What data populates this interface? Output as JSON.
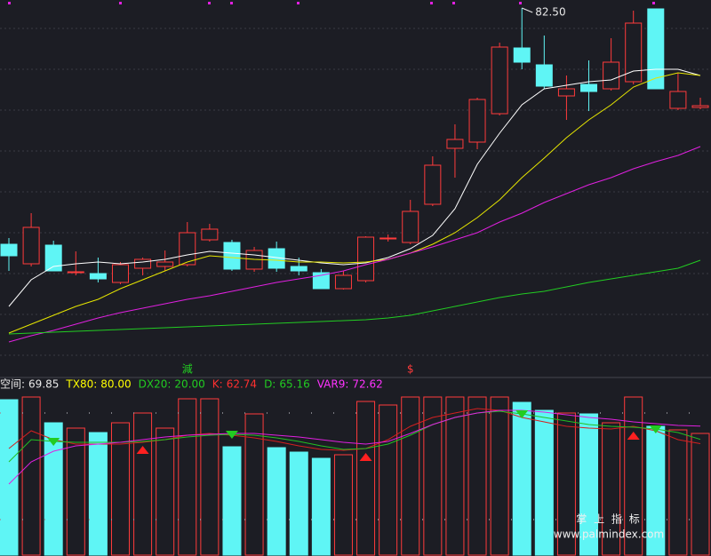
{
  "chart_data": [
    {
      "type": "candlestick",
      "open": [
        55.9,
        53.7,
        55.8,
        52.7,
        52.6,
        51.6,
        53.2,
        53.4,
        53.6,
        56.4,
        56.1,
        53.1,
        55.4,
        53.4,
        52.7,
        50.9,
        51.8,
        56.5,
        56.1,
        60.4,
        66.7,
        67.4,
        70.6,
        78.0,
        76.1,
        72.6,
        73.9,
        73.4,
        74.2,
        82.4,
        71.2,
        71.3
      ],
      "high": [
        56.6,
        59.4,
        56.3,
        55.1,
        54.4,
        53.9,
        54.4,
        55.2,
        58.4,
        58.2,
        56.4,
        55.6,
        56.2,
        54.4,
        53.1,
        52.9,
        56.8,
        57.0,
        60.9,
        65.8,
        69.4,
        72.4,
        78.6,
        82.5,
        79.4,
        74.9,
        76.6,
        79.1,
        82.2,
        82.4,
        75.2,
        72.4
      ],
      "low": [
        52.9,
        53.4,
        52.9,
        52.4,
        51.6,
        51.4,
        52.4,
        52.9,
        53.4,
        56.2,
        52.9,
        52.8,
        52.8,
        52.4,
        50.9,
        50.8,
        51.6,
        56.2,
        55.9,
        60.2,
        63.4,
        66.6,
        70.4,
        75.6,
        73.4,
        69.9,
        70.9,
        73.2,
        73.9,
        73.4,
        71.0,
        71.1
      ],
      "close": [
        54.6,
        57.8,
        52.9,
        52.8,
        52.0,
        53.6,
        54.2,
        53.9,
        57.2,
        57.6,
        53.1,
        55.2,
        53.2,
        52.9,
        50.9,
        52.4,
        56.7,
        56.6,
        59.6,
        64.8,
        67.7,
        72.2,
        78.1,
        76.4,
        73.7,
        73.4,
        73.1,
        76.4,
        80.8,
        73.4,
        73.1,
        71.5
      ],
      "up_color": "#ff3b3b",
      "down_color": "#5ff5f5",
      "ylim": [
        40.9,
        83.4
      ],
      "series": [
        {
          "color": "#ffffff",
          "values": [
            48.9,
            51.9,
            53.4,
            53.7,
            53.9,
            53.7,
            53.9,
            54.2,
            54.7,
            55.1,
            54.9,
            54.7,
            54.4,
            54.1,
            53.8,
            53.6,
            53.8,
            54.4,
            55.4,
            56.9,
            59.9,
            64.9,
            68.4,
            71.6,
            73.4,
            73.8,
            74.2,
            74.4,
            75.4,
            75.6,
            75.6,
            74.9
          ]
        },
        {
          "color": "#e6e600",
          "values": [
            45.9,
            46.9,
            47.9,
            48.9,
            49.7,
            50.9,
            51.9,
            52.9,
            53.9,
            54.6,
            54.4,
            54.2,
            54.1,
            53.9,
            53.9,
            53.8,
            53.9,
            54.2,
            54.9,
            55.9,
            57.2,
            58.9,
            60.9,
            63.4,
            65.6,
            67.9,
            69.9,
            71.6,
            73.6,
            74.6,
            75.2,
            74.9
          ]
        },
        {
          "color": "#e020e0",
          "values": [
            44.9,
            45.6,
            46.2,
            46.9,
            47.6,
            48.2,
            48.7,
            49.2,
            49.7,
            50.1,
            50.6,
            51.1,
            51.6,
            52.0,
            52.4,
            52.9,
            53.6,
            54.2,
            54.9,
            55.6,
            56.4,
            57.2,
            58.4,
            59.4,
            60.6,
            61.6,
            62.6,
            63.4,
            64.4,
            65.2,
            65.9,
            66.9
          ]
        },
        {
          "color": "#22cc22",
          "values": [
            45.8,
            45.9,
            46.0,
            46.1,
            46.2,
            46.3,
            46.4,
            46.5,
            46.6,
            46.7,
            46.8,
            46.9,
            47.0,
            47.1,
            47.2,
            47.3,
            47.4,
            47.6,
            47.9,
            48.4,
            48.9,
            49.4,
            49.9,
            50.3,
            50.6,
            51.1,
            51.6,
            52.0,
            52.4,
            52.8,
            53.2,
            54.1
          ]
        }
      ],
      "price_label": {
        "index": 23,
        "value": 82.5,
        "label": "82.50"
      },
      "annotations": [
        {
          "text": "減",
          "index": 8,
          "color": "#22cc22"
        },
        {
          "text": "$",
          "index": 18,
          "color": "#ff3b3b"
        }
      ]
    },
    {
      "type": "indicator",
      "ylim": [
        0,
        100
      ],
      "bars": [
        87.5,
        89,
        74.5,
        71.5,
        69,
        74.5,
        80,
        71.5,
        88,
        88,
        61,
        79.5,
        60.5,
        58,
        54.5,
        56.5,
        86.5,
        84.5,
        89,
        89,
        89,
        89,
        89,
        86,
        81.5,
        80,
        79.5,
        74.5,
        89,
        72.5,
        70.5,
        68.5
      ],
      "readouts": [
        {
          "name": "空间:",
          "value": 69.85,
          "color": "#e8e8e8"
        },
        {
          "name": "TX80:",
          "value": 80,
          "label": "80.00",
          "color": "#ffff00"
        },
        {
          "name": "DX20:",
          "value": 20,
          "label": "20.00",
          "color": "#22cc22"
        },
        {
          "name": "K:",
          "value": 62.74,
          "color": "#ff3030"
        },
        {
          "name": "D:",
          "value": 65.16,
          "color": "#22cc22"
        },
        {
          "name": "VAR9:",
          "value": 72.62,
          "color": "#ff33ff"
        }
      ],
      "series": [
        {
          "color": "#d42020",
          "values": [
            60,
            70,
            65,
            62.5,
            62.5,
            62.5,
            63.5,
            65,
            67.5,
            68.5,
            67.5,
            66,
            64,
            61.5,
            59.5,
            59,
            60,
            65,
            72.5,
            77.5,
            80,
            82.5,
            81.5,
            77.5,
            75,
            72.5,
            71.5,
            71,
            72.5,
            70,
            65,
            62.74
          ]
        },
        {
          "color": "#22c022",
          "values": [
            52.5,
            65,
            64,
            63.5,
            63.5,
            63.5,
            64,
            65,
            66.5,
            67.5,
            68,
            67.5,
            66,
            64,
            61.5,
            59.5,
            60,
            62.5,
            67.5,
            73.5,
            77.5,
            80,
            81,
            79.5,
            77.5,
            75.5,
            73.5,
            72.5,
            72,
            71,
            69,
            65.16
          ]
        },
        {
          "color": "#e020e0",
          "values": [
            40,
            52.5,
            58.5,
            61.5,
            62.5,
            63.5,
            65,
            66.5,
            67.5,
            68,
            68.5,
            68.5,
            67.5,
            66.5,
            65,
            63.5,
            62.5,
            64,
            68.5,
            73.5,
            77.5,
            80,
            81.5,
            81.5,
            80.5,
            79,
            77.5,
            76.5,
            75,
            74,
            73,
            72.62
          ]
        }
      ],
      "signals": {
        "down": [
          2,
          10,
          23,
          29
        ],
        "up": [
          6,
          16,
          28
        ],
        "down_color": "#22cc22",
        "up_color": "#ff2020"
      }
    }
  ],
  "watermark": {
    "title": "掌 上 指 标",
    "url": "www.palmindex.com"
  }
}
